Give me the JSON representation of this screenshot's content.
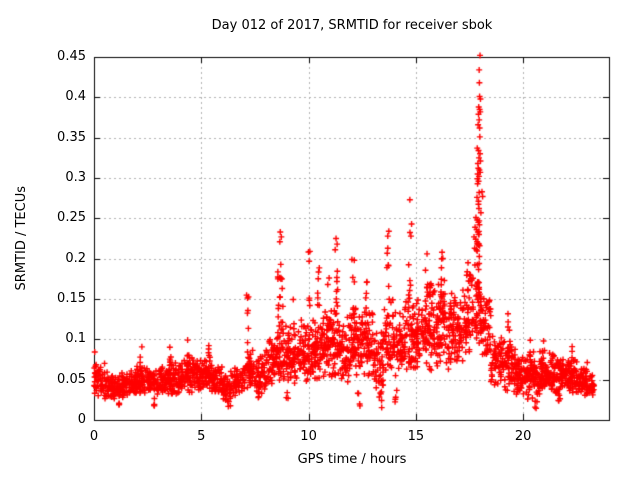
{
  "title": "Day 012 of 2017, SRMTID for receiver sbok",
  "chart_data": {
    "type": "scatter",
    "title": "Day 012 of 2017, SRMTID for receiver sbok",
    "xlabel": "GPS time / hours",
    "ylabel": "SRMTID / TECUs",
    "xlim": [
      0,
      24
    ],
    "ylim": [
      0,
      0.45
    ],
    "x_ticks": [
      [
        0,
        "0"
      ],
      [
        5,
        "5"
      ],
      [
        10,
        "10"
      ],
      [
        15,
        "15"
      ],
      [
        20,
        "20"
      ]
    ],
    "y_ticks": [
      [
        0,
        "0"
      ],
      [
        0.05,
        "0.05"
      ],
      [
        0.1,
        "0.1"
      ],
      [
        0.15,
        "0.15"
      ],
      [
        0.2,
        "0.2"
      ],
      [
        0.25,
        "0.25"
      ],
      [
        0.3,
        "0.3"
      ],
      [
        0.35,
        "0.35"
      ],
      [
        0.4,
        "0.4"
      ],
      [
        0.45,
        "0.45"
      ]
    ],
    "grid": true,
    "legend": "none",
    "marker": "plus",
    "marker_color": "#ff0000",
    "grid_color": "#b0b0b0",
    "axis_color": "#000000",
    "seed": 20170112,
    "band_segments": [
      [
        0.0,
        0.5,
        45,
        0.03,
        0.075
      ],
      [
        0.5,
        1.0,
        55,
        0.025,
        0.06
      ],
      [
        1.0,
        1.5,
        55,
        0.027,
        0.062
      ],
      [
        1.5,
        2.0,
        55,
        0.03,
        0.065
      ],
      [
        2.0,
        2.5,
        55,
        0.03,
        0.068
      ],
      [
        2.5,
        3.0,
        55,
        0.028,
        0.066
      ],
      [
        3.0,
        3.5,
        55,
        0.03,
        0.072
      ],
      [
        3.5,
        4.0,
        55,
        0.03,
        0.078
      ],
      [
        4.0,
        4.5,
        55,
        0.032,
        0.08
      ],
      [
        4.5,
        5.0,
        55,
        0.034,
        0.08
      ],
      [
        5.0,
        5.5,
        55,
        0.035,
        0.082
      ],
      [
        5.5,
        6.0,
        50,
        0.03,
        0.07
      ],
      [
        6.0,
        6.5,
        45,
        0.022,
        0.062
      ],
      [
        6.5,
        7.0,
        45,
        0.028,
        0.072
      ],
      [
        7.0,
        7.5,
        45,
        0.035,
        0.095
      ],
      [
        7.5,
        8.0,
        50,
        0.03,
        0.09
      ],
      [
        8.0,
        8.5,
        50,
        0.04,
        0.11
      ],
      [
        8.5,
        9.0,
        55,
        0.045,
        0.13
      ],
      [
        9.0,
        9.5,
        50,
        0.04,
        0.12
      ],
      [
        9.5,
        10.0,
        55,
        0.045,
        0.125
      ],
      [
        10.0,
        10.5,
        55,
        0.045,
        0.13
      ],
      [
        10.5,
        11.0,
        55,
        0.05,
        0.14
      ],
      [
        11.0,
        11.5,
        55,
        0.05,
        0.15
      ],
      [
        11.5,
        12.0,
        55,
        0.045,
        0.14
      ],
      [
        12.0,
        12.5,
        55,
        0.05,
        0.145
      ],
      [
        12.5,
        13.0,
        55,
        0.05,
        0.15
      ],
      [
        13.0,
        13.5,
        50,
        0.03,
        0.12
      ],
      [
        13.5,
        14.0,
        50,
        0.05,
        0.15
      ],
      [
        14.0,
        14.5,
        50,
        0.05,
        0.14
      ],
      [
        14.5,
        15.0,
        55,
        0.055,
        0.16
      ],
      [
        15.0,
        15.5,
        55,
        0.055,
        0.165
      ],
      [
        15.5,
        16.0,
        60,
        0.06,
        0.18
      ],
      [
        16.0,
        16.5,
        60,
        0.065,
        0.185
      ],
      [
        16.5,
        17.0,
        55,
        0.06,
        0.17
      ],
      [
        17.0,
        17.5,
        55,
        0.07,
        0.18
      ],
      [
        17.5,
        18.0,
        50,
        0.09,
        0.2
      ],
      [
        18.0,
        18.5,
        50,
        0.07,
        0.17
      ],
      [
        18.5,
        19.0,
        55,
        0.04,
        0.11
      ],
      [
        19.0,
        19.5,
        50,
        0.035,
        0.105
      ],
      [
        19.5,
        20.0,
        60,
        0.028,
        0.09
      ],
      [
        20.0,
        20.5,
        60,
        0.025,
        0.088
      ],
      [
        20.5,
        21.0,
        60,
        0.03,
        0.09
      ],
      [
        21.0,
        21.5,
        60,
        0.032,
        0.086
      ],
      [
        21.5,
        22.0,
        60,
        0.03,
        0.08
      ],
      [
        22.0,
        22.5,
        60,
        0.032,
        0.082
      ],
      [
        22.5,
        23.0,
        55,
        0.03,
        0.072
      ],
      [
        23.0,
        23.3,
        30,
        0.028,
        0.06
      ]
    ],
    "burst_columns": [
      [
        0.05,
        0.05,
        0.09,
        6
      ],
      [
        1.2,
        0.014,
        0.03,
        4
      ],
      [
        2.2,
        0.06,
        0.092,
        5
      ],
      [
        2.8,
        0.016,
        0.032,
        4
      ],
      [
        3.55,
        0.06,
        0.096,
        5
      ],
      [
        4.4,
        0.06,
        0.1,
        6
      ],
      [
        5.3,
        0.06,
        0.1,
        6
      ],
      [
        6.3,
        0.016,
        0.03,
        3
      ],
      [
        7.15,
        0.08,
        0.158,
        8
      ],
      [
        7.7,
        0.018,
        0.035,
        4
      ],
      [
        8.62,
        0.1,
        0.2,
        10
      ],
      [
        8.75,
        0.12,
        0.215,
        8
      ],
      [
        9.0,
        0.02,
        0.035,
        3
      ],
      [
        9.3,
        0.08,
        0.15,
        7
      ],
      [
        10.05,
        0.1,
        0.21,
        8
      ],
      [
        10.45,
        0.1,
        0.19,
        8
      ],
      [
        10.9,
        0.1,
        0.185,
        7
      ],
      [
        11.3,
        0.12,
        0.21,
        9
      ],
      [
        12.1,
        0.1,
        0.195,
        8
      ],
      [
        12.35,
        0.015,
        0.04,
        4
      ],
      [
        12.7,
        0.1,
        0.175,
        6
      ],
      [
        13.35,
        0.01,
        0.035,
        6
      ],
      [
        13.7,
        0.1,
        0.225,
        8
      ],
      [
        14.05,
        0.02,
        0.04,
        4
      ],
      [
        14.7,
        0.12,
        0.235,
        9
      ],
      [
        15.5,
        0.1,
        0.205,
        8
      ],
      [
        16.2,
        0.12,
        0.205,
        8
      ],
      [
        16.8,
        0.1,
        0.185,
        6
      ],
      [
        17.4,
        0.12,
        0.21,
        7
      ],
      [
        17.9,
        0.15,
        0.295,
        22
      ],
      [
        18.3,
        0.06,
        0.148,
        7
      ],
      [
        19.3,
        0.06,
        0.142,
        7
      ],
      [
        20.35,
        0.05,
        0.118,
        6
      ],
      [
        20.6,
        0.014,
        0.03,
        4
      ],
      [
        20.9,
        0.05,
        0.115,
        5
      ],
      [
        21.7,
        0.015,
        0.03,
        3
      ],
      [
        22.3,
        0.04,
        0.102,
        5
      ]
    ],
    "points": [
      [
        17.99,
        0.452
      ],
      [
        17.95,
        0.434
      ],
      [
        17.96,
        0.418
      ],
      [
        17.97,
        0.401
      ],
      [
        18.01,
        0.398
      ],
      [
        17.93,
        0.388
      ],
      [
        17.97,
        0.385
      ],
      [
        18.0,
        0.382
      ],
      [
        17.92,
        0.379
      ],
      [
        17.95,
        0.372
      ],
      [
        17.9,
        0.366
      ],
      [
        17.97,
        0.362
      ],
      [
        17.98,
        0.351
      ],
      [
        17.86,
        0.337
      ],
      [
        17.92,
        0.334
      ],
      [
        17.99,
        0.33
      ],
      [
        17.94,
        0.325
      ],
      [
        18.01,
        0.321
      ],
      [
        17.89,
        0.318
      ],
      [
        17.91,
        0.312
      ],
      [
        17.96,
        0.31
      ],
      [
        18.0,
        0.307
      ],
      [
        17.88,
        0.305
      ],
      [
        17.94,
        0.302
      ],
      [
        17.87,
        0.299
      ],
      [
        17.92,
        0.296
      ],
      [
        18.08,
        0.283
      ],
      [
        18.11,
        0.277
      ],
      [
        18.03,
        0.257
      ],
      [
        17.8,
        0.251
      ],
      [
        17.86,
        0.248
      ],
      [
        17.91,
        0.245
      ],
      [
        17.96,
        0.242
      ],
      [
        17.76,
        0.239
      ],
      [
        17.83,
        0.236
      ],
      [
        17.89,
        0.233
      ],
      [
        17.94,
        0.23
      ],
      [
        17.71,
        0.227
      ],
      [
        17.79,
        0.224
      ],
      [
        17.85,
        0.221
      ],
      [
        17.9,
        0.219
      ],
      [
        17.97,
        0.216
      ],
      [
        17.74,
        0.213
      ],
      [
        17.82,
        0.211
      ],
      [
        14.72,
        0.273
      ],
      [
        14.8,
        0.243
      ],
      [
        14.77,
        0.228
      ],
      [
        13.74,
        0.234
      ],
      [
        13.69,
        0.228
      ],
      [
        8.68,
        0.233
      ],
      [
        8.73,
        0.227
      ],
      [
        8.66,
        0.221
      ],
      [
        11.28,
        0.225
      ],
      [
        11.33,
        0.218
      ],
      [
        11.24,
        0.211
      ],
      [
        12.13,
        0.198
      ],
      [
        12.02,
        0.199
      ],
      [
        15.52,
        0.206
      ],
      [
        16.22,
        0.208
      ],
      [
        10.06,
        0.209
      ]
    ]
  }
}
